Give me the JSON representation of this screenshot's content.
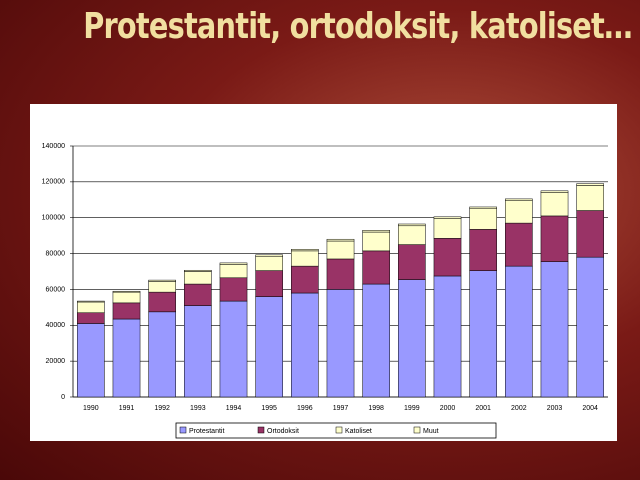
{
  "chart_data": {
    "type": "stacked-bar",
    "title": "Protestantit, ortodoksit, katoliset…",
    "categories": [
      "1990",
      "1991",
      "1992",
      "1993",
      "1994",
      "1995",
      "1996",
      "1997",
      "1998",
      "1999",
      "2000",
      "2001",
      "2002",
      "2003",
      "2004"
    ],
    "series": [
      {
        "name": "Protestantit",
        "color": "#9999ff",
        "values": [
          41000,
          43500,
          47500,
          51000,
          53500,
          56000,
          58000,
          60000,
          63000,
          65500,
          67500,
          70500,
          73000,
          75500,
          78000
        ]
      },
      {
        "name": "Ortodoksit",
        "color": "#993366",
        "values": [
          6000,
          9000,
          11000,
          12000,
          13000,
          14500,
          15000,
          17000,
          18500,
          19500,
          21000,
          23000,
          24000,
          25500,
          26000
        ]
      },
      {
        "name": "Katoliset",
        "color": "#ffffcc",
        "values": [
          6000,
          6000,
          6000,
          7000,
          7500,
          8000,
          8500,
          10000,
          10500,
          10500,
          11000,
          11500,
          12500,
          13000,
          14000
        ]
      },
      {
        "name": "Muut",
        "color": "#ffffcc",
        "values": [
          500,
          500,
          700,
          700,
          800,
          800,
          900,
          1000,
          1000,
          1000,
          1000,
          1000,
          1000,
          1000,
          1000
        ]
      }
    ],
    "ylim": [
      0,
      140000
    ],
    "yticks": [
      0,
      20000,
      40000,
      60000,
      80000,
      100000,
      120000,
      140000
    ],
    "grid": true,
    "legend": "bottom"
  }
}
